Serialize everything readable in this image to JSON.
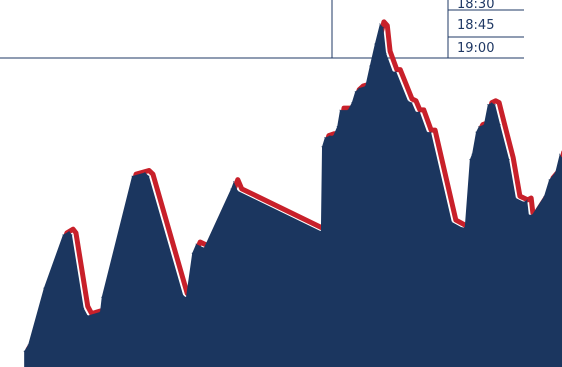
{
  "colors": {
    "area_fill": "#1b365f",
    "outline": "#c8202a",
    "grid": "#1f3864",
    "tick_text": "#1f3864",
    "background": "#ffffff"
  },
  "chart_data": {
    "type": "area",
    "title": "",
    "xlabel": "",
    "ylabel": "",
    "tick_labels": [
      "18:30",
      "18:45",
      "19:00"
    ],
    "legend": "none",
    "grid": false,
    "ylim": [
      0,
      100
    ],
    "xlim": [
      0,
      100
    ],
    "series": [
      {
        "x": [
          4.3,
          5.0,
          7.8,
          11.2,
          12.3,
          12.8,
          14.9,
          15.6,
          17.8,
          18.1,
          23.5,
          25.8,
          26.5,
          32.6,
          33.1,
          34.2,
          34.9,
          36.3,
          41.1,
          41.6,
          42.3,
          57.1,
          57.3,
          57.8,
          58.7,
          59.3,
          60.0,
          60.5,
          61.9,
          62.6,
          63.2,
          63.9,
          65.0,
          65.8,
          66.7,
          67.6,
          68.2,
          68.7,
          69.9,
          70.5,
          72.6,
          73.3,
          74.0,
          74.7,
          76.0,
          76.7,
          80.4,
          82.2,
          82.7,
          83.6,
          84.0,
          84.7,
          85.2,
          86.1,
          86.8,
          87.5,
          88.1,
          89.0,
          90.6,
          91.8,
          93.2,
          93.8,
          94.1,
          94.7,
          96.8,
          97.7,
          98.8,
          99.6,
          100.0
        ],
        "y": [
          4.3,
          6.0,
          21.5,
          36.0,
          37.0,
          36.0,
          16.0,
          14.0,
          15.0,
          19.0,
          52.0,
          53.0,
          52.0,
          19.5,
          19.0,
          31.0,
          33.5,
          32.5,
          48.5,
          50.5,
          48.0,
          37.0,
          60.0,
          62.5,
          63.0,
          63.0,
          65.5,
          70.0,
          70.0,
          72.0,
          75.0,
          76.0,
          76.5,
          82.0,
          88.0,
          93.5,
          92.5,
          85.5,
          80.5,
          80.5,
          72.5,
          72.0,
          69.5,
          69.5,
          64.0,
          64.0,
          39.5,
          38.0,
          38.0,
          56.5,
          58.0,
          64.0,
          65.5,
          66.0,
          71.5,
          72.0,
          71.5,
          66.0,
          56.5,
          46.0,
          45.0,
          45.5,
          41.5,
          41.5,
          46.5,
          51.0,
          53.0,
          58.0,
          57.0
        ]
      }
    ]
  }
}
